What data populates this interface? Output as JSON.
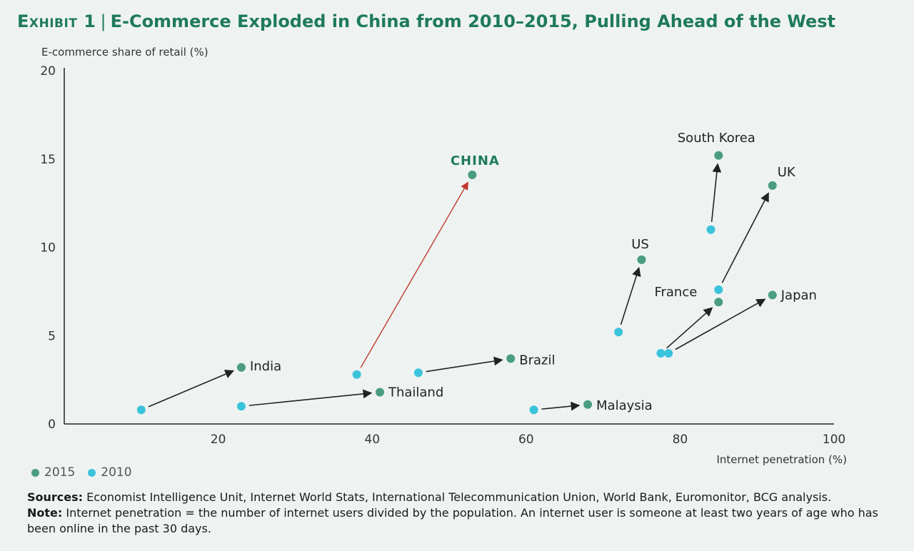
{
  "header": {
    "exhibit": "Exhibit 1",
    "separator": "|",
    "title": "E-Commerce Exploded in China from 2010–2015, Pulling Ahead of the West"
  },
  "colors": {
    "y2015": "#4a9d7f",
    "y2010": "#3cc3dc",
    "china": "#1f7a5c",
    "china_arrow": "#c0392b",
    "axis": "#222222"
  },
  "chart_data": {
    "type": "scatter",
    "title": "E-Commerce Exploded in China from 2010–2015, Pulling Ahead of the West",
    "xlabel": "Internet penetration (%)",
    "ylabel": "E-commerce share of retail (%)",
    "xlim": [
      0,
      100
    ],
    "ylim": [
      0,
      20
    ],
    "xticks": [
      20,
      40,
      60,
      80,
      100
    ],
    "yticks": [
      0,
      5,
      10,
      15,
      20
    ],
    "legend": [
      "2015",
      "2010"
    ],
    "legend_position": "bottom-left",
    "countries": [
      {
        "name": "India",
        "p2010": [
          10,
          0.8
        ],
        "p2015": [
          23,
          3.2
        ]
      },
      {
        "name": "Thailand",
        "p2010": [
          23,
          1.0
        ],
        "p2015": [
          41,
          1.8
        ]
      },
      {
        "name": "CHINA",
        "p2010": [
          38,
          2.8
        ],
        "p2015": [
          53,
          14.1
        ],
        "highlight": true
      },
      {
        "name": "Brazil",
        "p2010": [
          46,
          2.9
        ],
        "p2015": [
          58,
          3.7
        ]
      },
      {
        "name": "Malaysia",
        "p2010": [
          61,
          0.8
        ],
        "p2015": [
          68,
          1.1
        ]
      },
      {
        "name": "US",
        "p2010": [
          72,
          5.2
        ],
        "p2015": [
          75,
          9.3
        ]
      },
      {
        "name": "France",
        "p2010": [
          77.5,
          4.0
        ],
        "p2015": [
          85,
          6.9
        ]
      },
      {
        "name": "Japan",
        "p2010": [
          78.5,
          4.0
        ],
        "p2015": [
          92,
          7.3
        ]
      },
      {
        "name": "UK",
        "p2010": [
          85,
          7.6
        ],
        "p2015": [
          92,
          13.5
        ]
      },
      {
        "name": "South Korea",
        "p2010": [
          84,
          11.0
        ],
        "p2015": [
          85,
          15.2
        ]
      }
    ]
  },
  "footer": {
    "sources_label": "Sources:",
    "sources_text": " Economist Intelligence Unit, Internet World Stats, International Telecommunication Union, World Bank, Euromonitor, BCG analysis.",
    "note_label": "Note:",
    "note_text": " Internet penetration = the number of internet users divided by the population. An internet user is someone at least two years of age who has been online in the past 30 days."
  }
}
